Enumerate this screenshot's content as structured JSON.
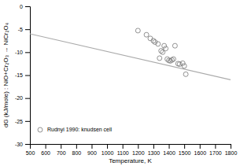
{
  "chart_data": {
    "type": "scatter",
    "xlabel": "Temperature, K",
    "ylabel": "dG (kJ/mole) : NiO+Cr₂O₃ → NiCr₂O₄",
    "xlim": [
      500,
      1800
    ],
    "ylim": [
      -30,
      0
    ],
    "xticks": [
      500,
      600,
      700,
      800,
      900,
      1000,
      1100,
      1200,
      1300,
      1400,
      1500,
      1600,
      1700,
      1800
    ],
    "yticks": [
      0,
      -5,
      -10,
      -15,
      -20,
      -25,
      -30
    ],
    "grid": false,
    "legend": "lower left",
    "series": [
      {
        "name": "Rudnyi 1990: knudsen cell",
        "type": "scatter",
        "color": "#777777",
        "marker": "circle",
        "x": [
          1200,
          1255,
          1280,
          1300,
          1310,
          1330,
          1340,
          1350,
          1360,
          1370,
          1380,
          1390,
          1400,
          1410,
          1420,
          1430,
          1440,
          1460,
          1470,
          1490,
          1500,
          1510
        ],
        "values": [
          -5.3,
          -6.2,
          -7.0,
          -7.5,
          -7.8,
          -8.2,
          -11.3,
          -9.7,
          -10.0,
          -8.6,
          -9.2,
          -11.5,
          -11.8,
          -11.9,
          -11.7,
          -11.5,
          -8.6,
          -12.5,
          -12.6,
          -12.4,
          -13.0,
          -14.8
        ]
      },
      {
        "type": "line",
        "color": "#aaaaaa",
        "x": [
          500,
          1800
        ],
        "values": [
          -6.0,
          -16.0
        ]
      }
    ]
  }
}
